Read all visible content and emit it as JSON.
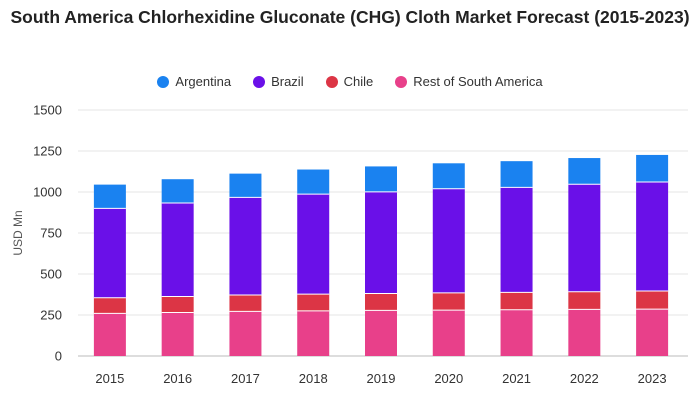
{
  "chart_data": {
    "type": "bar",
    "stacked": true,
    "title": "South America Chlorhexidine Gluconate (CHG) Cloth Market Forecast (2015-2023)",
    "ylabel": "USD Mn",
    "xlabel": "",
    "ylim": [
      0,
      1500
    ],
    "yticks": [
      0,
      250,
      500,
      750,
      1000,
      1250,
      1500
    ],
    "grid": true,
    "legend_position": "top",
    "categories": [
      "2015",
      "2016",
      "2017",
      "2018",
      "2019",
      "2020",
      "2021",
      "2022",
      "2023"
    ],
    "series": [
      {
        "name": "Rest of South America",
        "color": "#e8408a",
        "values": [
          260,
          265,
          272,
          275,
          278,
          280,
          282,
          284,
          286
        ]
      },
      {
        "name": "Chile",
        "color": "#dc3545",
        "values": [
          95,
          98,
          100,
          102,
          103,
          105,
          106,
          108,
          110
        ]
      },
      {
        "name": "Brazil",
        "color": "#6a10e8",
        "values": [
          545,
          570,
          595,
          610,
          620,
          635,
          640,
          655,
          665
        ]
      },
      {
        "name": "Argentina",
        "color": "#1a82f0",
        "values": [
          145,
          145,
          145,
          150,
          155,
          155,
          160,
          160,
          165
        ]
      }
    ],
    "legend_order": [
      "Argentina",
      "Brazil",
      "Chile",
      "Rest of South America"
    ]
  }
}
